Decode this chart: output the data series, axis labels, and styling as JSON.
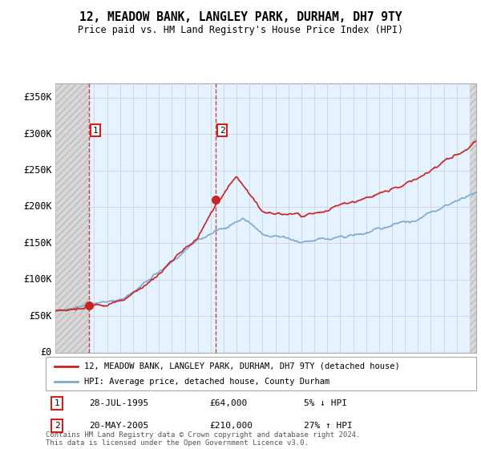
{
  "title": "12, MEADOW BANK, LANGLEY PARK, DURHAM, DH7 9TY",
  "subtitle": "Price paid vs. HM Land Registry's House Price Index (HPI)",
  "legend_line1": "12, MEADOW BANK, LANGLEY PARK, DURHAM, DH7 9TY (detached house)",
  "legend_line2": "HPI: Average price, detached house, County Durham",
  "footer": "Contains HM Land Registry data © Crown copyright and database right 2024.\nThis data is licensed under the Open Government Licence v3.0.",
  "sale1_date": "28-JUL-1995",
  "sale1_price": 64000,
  "sale1_hpi_label": "5% ↓ HPI",
  "sale2_date": "20-MAY-2005",
  "sale2_price": 210000,
  "sale2_hpi_label": "27% ↑ HPI",
  "ylim": [
    0,
    370000
  ],
  "yticks": [
    0,
    50000,
    100000,
    150000,
    200000,
    250000,
    300000,
    350000
  ],
  "ytick_labels": [
    "£0",
    "£50K",
    "£100K",
    "£150K",
    "£200K",
    "£250K",
    "£300K",
    "£350K"
  ],
  "hpi_color": "#7aabd4",
  "property_color": "#cc2222",
  "sale1_x": 1995.57,
  "sale2_x": 2005.38,
  "grid_color": "#cccccc",
  "bg_color": "#ddeeff",
  "xlim_left": 1993.0,
  "xlim_right": 2025.5
}
